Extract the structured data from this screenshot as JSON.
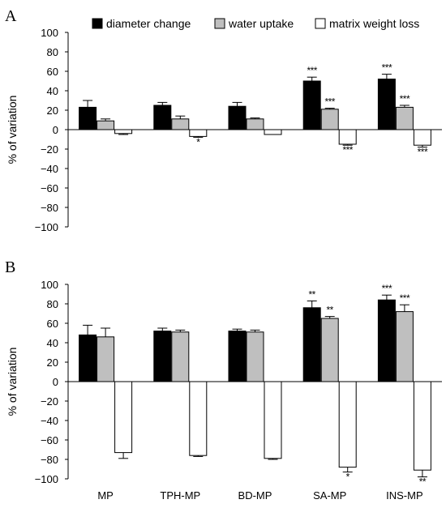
{
  "legend": {
    "items": [
      {
        "label": "diameter change",
        "color": "#000000"
      },
      {
        "label": "water uptake",
        "color": "#bfbfbf"
      },
      {
        "label": "matrix weight loss",
        "color": "#ffffff"
      }
    ]
  },
  "chart_data": [
    {
      "type": "bar",
      "panel_label": "A",
      "ylabel": "% of variation",
      "ylim": [
        -100,
        100
      ],
      "yticks": [
        "100",
        "80",
        "60",
        "40",
        "20",
        "0",
        "−20",
        "−40",
        "−60",
        "−80",
        "−100"
      ],
      "categories": [
        "MP",
        "TPH-MP",
        "BD-MP",
        "SA-MP",
        "INS-MP"
      ],
      "show_category_labels": false,
      "series": [
        {
          "name": "diameter change",
          "color": "#000000",
          "values": [
            23,
            25,
            24,
            50,
            52
          ],
          "errors": [
            7,
            3,
            4,
            4,
            5
          ],
          "significance": [
            "",
            "",
            "",
            "***",
            "***"
          ]
        },
        {
          "name": "water uptake",
          "color": "#bfbfbf",
          "values": [
            9,
            11,
            11,
            21,
            23
          ],
          "errors": [
            2,
            3,
            1,
            1,
            2
          ],
          "significance": [
            "",
            "",
            "",
            "***",
            "***"
          ]
        },
        {
          "name": "matrix weight loss",
          "color": "#ffffff",
          "values": [
            -4,
            -7,
            -5,
            -15,
            -16
          ],
          "errors": [
            1,
            1,
            0,
            1,
            2
          ],
          "significance": [
            "",
            "*",
            "",
            "***",
            "***"
          ]
        }
      ]
    },
    {
      "type": "bar",
      "panel_label": "B",
      "ylabel": "% of variation",
      "ylim": [
        -100,
        100
      ],
      "yticks": [
        "100",
        "80",
        "60",
        "40",
        "20",
        "0",
        "−20",
        "−40",
        "−60",
        "−80",
        "−100"
      ],
      "categories": [
        "MP",
        "TPH-MP",
        "BD-MP",
        "SA-MP",
        "INS-MP"
      ],
      "show_category_labels": true,
      "series": [
        {
          "name": "diameter change",
          "color": "#000000",
          "values": [
            48,
            52,
            52,
            76,
            84
          ],
          "errors": [
            10,
            3,
            2,
            7,
            5
          ],
          "significance": [
            "",
            "",
            "",
            "**",
            "***"
          ]
        },
        {
          "name": "water uptake",
          "color": "#bfbfbf",
          "values": [
            46,
            51,
            51,
            65,
            72
          ],
          "errors": [
            9,
            2,
            2,
            2,
            7
          ],
          "significance": [
            "",
            "",
            "",
            "**",
            "***"
          ]
        },
        {
          "name": "matrix weight loss",
          "color": "#ffffff",
          "values": [
            -73,
            -76,
            -79,
            -88,
            -91
          ],
          "errors": [
            6,
            1,
            1,
            5,
            7
          ],
          "significance": [
            "",
            "",
            "",
            "*",
            "**"
          ]
        }
      ]
    }
  ]
}
